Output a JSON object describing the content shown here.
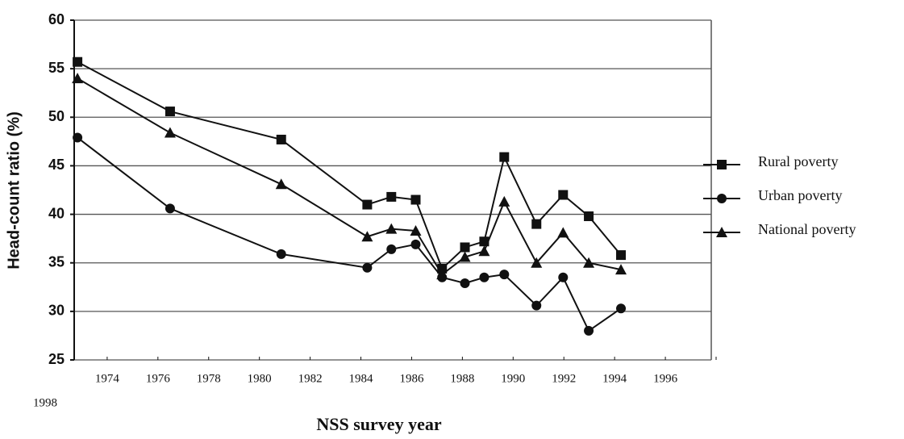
{
  "chart_data": {
    "type": "line",
    "xlabel": "NSS survey year",
    "ylabel": "Head-count ratio (%)",
    "x": [
      1972.83,
      1976.48,
      1980.86,
      1984.25,
      1985.2,
      1986.16,
      1987.2,
      1988.1,
      1988.86,
      1989.65,
      1990.92,
      1991.97,
      1992.98,
      1994.25
    ],
    "series": [
      {
        "name": "Rural poverty",
        "color": "#111111",
        "marker": "square",
        "values": [
          55.7,
          50.6,
          47.7,
          41.0,
          41.8,
          41.5,
          34.4,
          36.6,
          37.2,
          45.9,
          39.0,
          42.0,
          39.8,
          35.8
        ]
      },
      {
        "name": "Urban poverty",
        "color": "#111111",
        "marker": "circle",
        "values": [
          47.9,
          40.6,
          35.9,
          34.5,
          36.4,
          36.9,
          33.5,
          32.9,
          33.5,
          33.8,
          30.6,
          33.5,
          28.0,
          30.3
        ]
      },
      {
        "name": "National poverty",
        "color": "#111111",
        "marker": "triangle",
        "values": [
          54.0,
          48.4,
          43.1,
          37.7,
          38.5,
          38.3,
          33.8,
          35.6,
          36.2,
          41.3,
          35.0,
          38.1,
          35.0,
          34.3
        ]
      }
    ],
    "xlim": [
      1972.7,
      1998
    ],
    "xticks": [
      1974,
      1976,
      1978,
      1980,
      1982,
      1984,
      1986,
      1988,
      1990,
      1992,
      1994,
      1996,
      1998
    ],
    "ylim": [
      25,
      60
    ],
    "yticks": [
      25,
      30,
      35,
      40,
      45,
      50,
      55,
      60
    ],
    "grid": true,
    "legend": "right"
  }
}
